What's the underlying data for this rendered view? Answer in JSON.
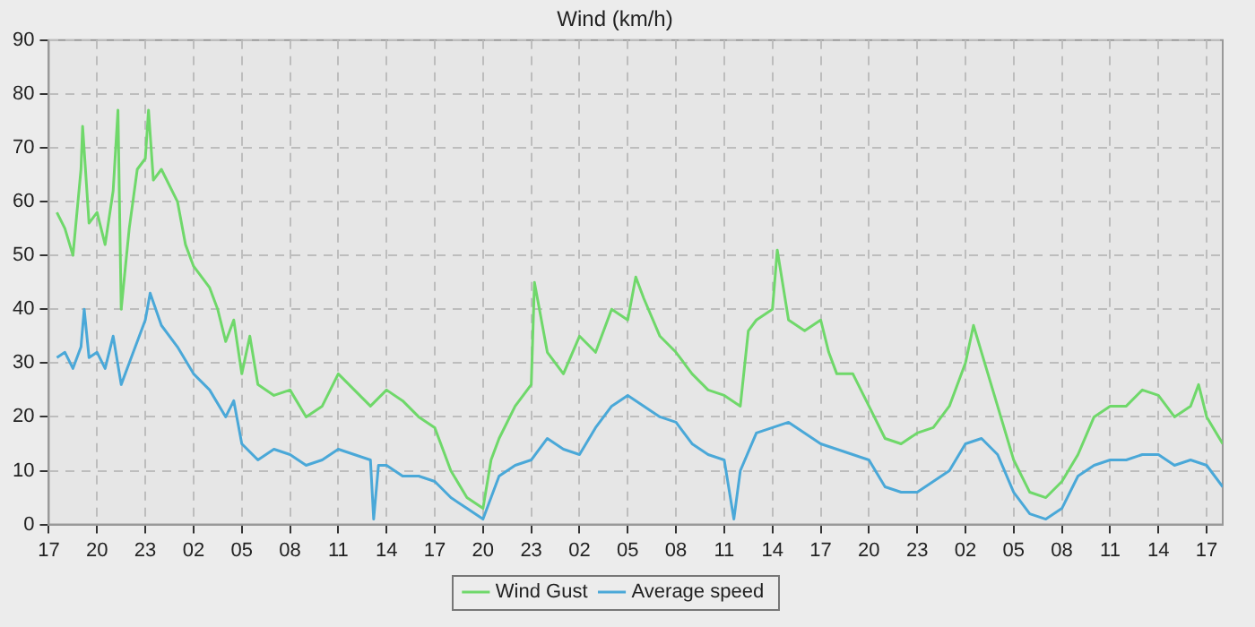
{
  "chart_data": {
    "type": "line",
    "title": "Wind (km/h)",
    "xlim": [
      "--01-01T17:00",
      "--01-04T18:00"
    ],
    "ylim": [
      0,
      90
    ],
    "xticks": [
      {
        "value": "--01-01T17:00",
        "label": "17"
      },
      {
        "value": "--01-01T20:00",
        "label": "20"
      },
      {
        "value": "--01-01T23:00",
        "label": "23"
      },
      {
        "value": "--01-02T02:00",
        "label": "02"
      },
      {
        "value": "--01-02T05:00",
        "label": "05"
      },
      {
        "value": "--01-02T08:00",
        "label": "08"
      },
      {
        "value": "--01-02T11:00",
        "label": "11"
      },
      {
        "value": "--01-02T14:00",
        "label": "14"
      },
      {
        "value": "--01-02T17:00",
        "label": "17"
      },
      {
        "value": "--01-02T20:00",
        "label": "20"
      },
      {
        "value": "--01-02T23:00",
        "label": "23"
      },
      {
        "value": "--01-03T02:00",
        "label": "02"
      },
      {
        "value": "--01-03T05:00",
        "label": "05"
      },
      {
        "value": "--01-03T08:00",
        "label": "08"
      },
      {
        "value": "--01-03T11:00",
        "label": "11"
      },
      {
        "value": "--01-03T14:00",
        "label": "14"
      },
      {
        "value": "--01-03T17:00",
        "label": "17"
      },
      {
        "value": "--01-03T20:00",
        "label": "20"
      },
      {
        "value": "--01-03T23:00",
        "label": "23"
      },
      {
        "value": "--01-04T02:00",
        "label": "02"
      },
      {
        "value": "--01-04T05:00",
        "label": "05"
      },
      {
        "value": "--01-04T08:00",
        "label": "08"
      },
      {
        "value": "--01-04T11:00",
        "label": "11"
      },
      {
        "value": "--01-04T14:00",
        "label": "14"
      },
      {
        "value": "--01-04T17:00",
        "label": "17"
      }
    ],
    "yticks": [
      0,
      10,
      20,
      30,
      40,
      50,
      60,
      70,
      80,
      90
    ],
    "grid": true,
    "legend": "bottom",
    "marker": "none",
    "line_style": "solid",
    "series": [
      {
        "name": "Wind Gust",
        "color": "#6fd86a",
        "x": [
          "--01-01T17:30",
          "--01-01T18:00",
          "--01-01T18:30",
          "--01-01T19:00",
          "--01-01T19:06",
          "--01-01T19:30",
          "--01-01T20:00",
          "--01-01T20:30",
          "--01-01T21:00",
          "--01-01T21:18",
          "--01-01T21:30",
          "--01-01T22:00",
          "--01-01T22:30",
          "--01-01T23:00",
          "--01-01T23:12",
          "--01-01T23:30",
          "--01-02T00:00",
          "--01-02T01:00",
          "--01-02T01:30",
          "--01-02T02:00",
          "--01-02T03:00",
          "--01-02T03:30",
          "--01-02T04:00",
          "--01-02T04:30",
          "--01-02T05:00",
          "--01-02T05:30",
          "--01-02T06:00",
          "--01-02T07:00",
          "--01-02T08:00",
          "--01-02T09:00",
          "--01-02T10:00",
          "--01-02T11:00",
          "--01-02T12:00",
          "--01-02T13:00",
          "--01-02T14:00",
          "--01-02T15:00",
          "--01-02T16:00",
          "--01-02T17:00",
          "--01-02T18:00",
          "--01-02T19:00",
          "--01-02T20:00",
          "--01-02T20:30",
          "--01-02T21:00",
          "--01-02T22:00",
          "--01-02T23:00",
          "--01-02T23:12",
          "--01-03T00:00",
          "--01-03T01:00",
          "--01-03T02:00",
          "--01-03T03:00",
          "--01-03T04:00",
          "--01-03T05:00",
          "--01-03T05:30",
          "--01-03T06:00",
          "--01-03T07:00",
          "--01-03T08:00",
          "--01-03T09:00",
          "--01-03T10:00",
          "--01-03T11:00",
          "--01-03T12:00",
          "--01-03T12:30",
          "--01-03T13:00",
          "--01-03T14:00",
          "--01-03T14:18",
          "--01-03T15:00",
          "--01-03T16:00",
          "--01-03T17:00",
          "--01-03T17:30",
          "--01-03T18:00",
          "--01-03T19:00",
          "--01-03T20:00",
          "--01-03T21:00",
          "--01-03T22:00",
          "--01-03T23:00",
          "--01-04T00:00",
          "--01-04T01:00",
          "--01-04T02:00",
          "--01-04T02:30",
          "--01-04T03:00",
          "--01-04T04:00",
          "--01-04T05:00",
          "--01-04T06:00",
          "--01-04T07:00",
          "--01-04T08:00",
          "--01-04T09:00",
          "--01-04T10:00",
          "--01-04T11:00",
          "--01-04T12:00",
          "--01-04T13:00",
          "--01-04T14:00",
          "--01-04T15:00",
          "--01-04T16:00",
          "--01-04T16:30",
          "--01-04T17:00",
          "--01-04T18:00"
        ],
        "values": [
          58,
          55,
          50,
          66,
          74,
          56,
          58,
          52,
          62,
          77,
          40,
          55,
          66,
          68,
          77,
          64,
          66,
          60,
          52,
          48,
          44,
          40,
          34,
          38,
          28,
          35,
          26,
          24,
          25,
          20,
          22,
          28,
          25,
          22,
          25,
          23,
          20,
          18,
          10,
          5,
          3,
          12,
          16,
          22,
          26,
          45,
          32,
          28,
          35,
          32,
          40,
          38,
          46,
          42,
          35,
          32,
          28,
          25,
          24,
          22,
          36,
          38,
          40,
          51,
          38,
          36,
          38,
          32,
          28,
          28,
          22,
          16,
          15,
          17,
          18,
          22,
          30,
          37,
          32,
          22,
          12,
          6,
          5,
          8,
          13,
          20,
          22,
          22,
          25,
          24,
          20,
          22,
          26,
          20,
          15
        ]
      },
      {
        "name": "Average speed",
        "color": "#4aa8d8",
        "x": [
          "--01-01T17:30",
          "--01-01T18:00",
          "--01-01T18:30",
          "--01-01T19:00",
          "--01-01T19:12",
          "--01-01T19:30",
          "--01-01T20:00",
          "--01-01T20:30",
          "--01-01T21:00",
          "--01-01T21:30",
          "--01-01T22:00",
          "--01-01T23:00",
          "--01-01T23:18",
          "--01-02T00:00",
          "--01-02T01:00",
          "--01-02T02:00",
          "--01-02T03:00",
          "--01-02T04:00",
          "--01-02T04:30",
          "--01-02T05:00",
          "--01-02T06:00",
          "--01-02T07:00",
          "--01-02T08:00",
          "--01-02T09:00",
          "--01-02T10:00",
          "--01-02T11:00",
          "--01-02T12:00",
          "--01-02T13:00",
          "--01-02T13:12",
          "--01-02T13:30",
          "--01-02T14:00",
          "--01-02T15:00",
          "--01-02T16:00",
          "--01-02T17:00",
          "--01-02T18:00",
          "--01-02T19:00",
          "--01-02T20:00",
          "--01-02T21:00",
          "--01-02T22:00",
          "--01-02T23:00",
          "--01-03T00:00",
          "--01-03T01:00",
          "--01-03T02:00",
          "--01-03T03:00",
          "--01-03T04:00",
          "--01-03T05:00",
          "--01-03T06:00",
          "--01-03T07:00",
          "--01-03T08:00",
          "--01-03T09:00",
          "--01-03T10:00",
          "--01-03T11:00",
          "--01-03T11:36",
          "--01-03T12:00",
          "--01-03T13:00",
          "--01-03T14:00",
          "--01-03T15:00",
          "--01-03T16:00",
          "--01-03T17:00",
          "--01-03T18:00",
          "--01-03T19:00",
          "--01-03T20:00",
          "--01-03T21:00",
          "--01-03T22:00",
          "--01-03T23:00",
          "--01-04T00:00",
          "--01-04T01:00",
          "--01-04T02:00",
          "--01-04T03:00",
          "--01-04T04:00",
          "--01-04T05:00",
          "--01-04T06:00",
          "--01-04T07:00",
          "--01-04T08:00",
          "--01-04T09:00",
          "--01-04T10:00",
          "--01-04T11:00",
          "--01-04T12:00",
          "--01-04T13:00",
          "--01-04T14:00",
          "--01-04T15:00",
          "--01-04T16:00",
          "--01-04T17:00",
          "--01-04T18:00"
        ],
        "values": [
          31,
          32,
          29,
          33,
          40,
          31,
          32,
          29,
          35,
          26,
          30,
          38,
          43,
          37,
          33,
          28,
          25,
          20,
          23,
          15,
          12,
          14,
          13,
          11,
          12,
          14,
          13,
          12,
          1,
          11,
          11,
          9,
          9,
          8,
          5,
          3,
          1,
          9,
          11,
          12,
          16,
          14,
          13,
          18,
          22,
          24,
          22,
          20,
          19,
          15,
          13,
          12,
          1,
          10,
          17,
          18,
          19,
          17,
          15,
          14,
          13,
          12,
          7,
          6,
          6,
          8,
          10,
          15,
          16,
          13,
          6,
          2,
          1,
          3,
          9,
          11,
          12,
          12,
          13,
          13,
          11,
          12,
          11,
          7
        ]
      }
    ]
  }
}
